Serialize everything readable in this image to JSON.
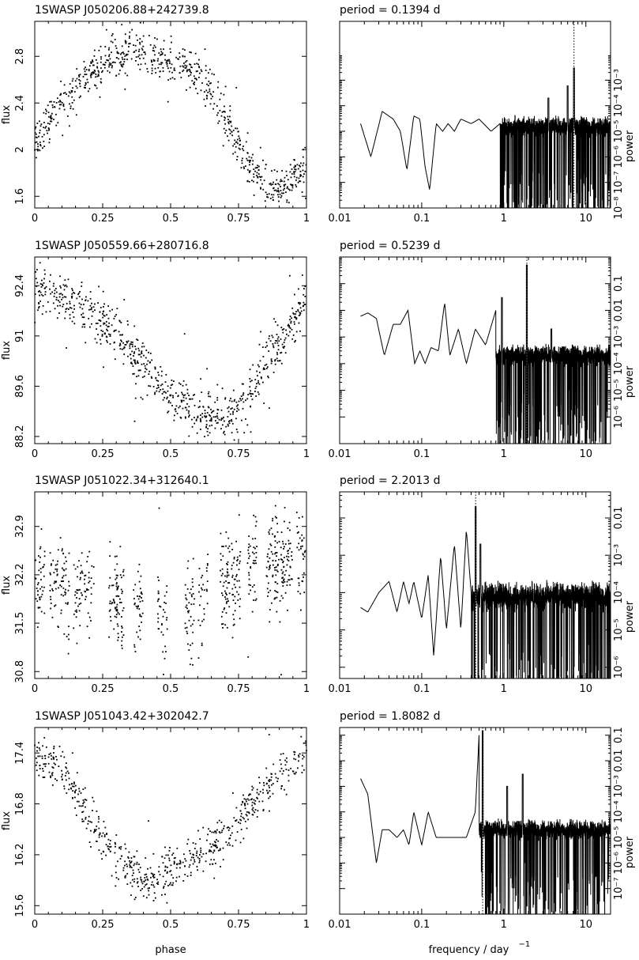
{
  "figure": {
    "xlabel_left": "phase",
    "xlabel_right_base": "frequency / day",
    "xlabel_right_exp": "−1",
    "ylabel_left": "flux",
    "ylabel_right": "power",
    "period_label": "period =",
    "period_unit": "d"
  },
  "panels": [
    {
      "star": "1SWASP J050206.88+242739.8",
      "period": "0.1394"
    },
    {
      "star": "1SWASP J050559.66+280716.8",
      "period": "0.5239"
    },
    {
      "star": "1SWASP J051022.34+312640.1",
      "period": "2.2013"
    },
    {
      "star": "1SWASP J051043.42+302042.7",
      "period": "1.8082"
    }
  ],
  "chart_data": [
    {
      "type": "scatter",
      "title": "1SWASP J050206.88+242739.8",
      "xlabel": "phase",
      "ylabel": "flux",
      "xlim": [
        0,
        1
      ],
      "ylim": [
        1.5,
        3.1
      ],
      "xticks": [
        "0",
        "0.25",
        "0.5",
        "0.75",
        "1"
      ],
      "yticks": [
        1.6,
        2,
        2.4,
        2.8
      ],
      "shape": "hump",
      "n_points": 750,
      "scatter": 0.14,
      "profile_x": [
        0,
        0.1,
        0.2,
        0.3,
        0.4,
        0.5,
        0.6,
        0.65,
        0.7,
        0.75,
        0.8,
        0.9,
        1.0
      ],
      "profile_y": [
        2.05,
        2.4,
        2.65,
        2.8,
        2.85,
        2.75,
        2.65,
        2.5,
        2.3,
        2.05,
        1.8,
        1.65,
        1.85
      ]
    },
    {
      "type": "line",
      "title": "period = 0.1394 d",
      "xlabel": "frequency / day−1",
      "ylabel": "power",
      "xscale": "log",
      "yscale": "log",
      "xlim": [
        0.01,
        20
      ],
      "ylim": [
        1e-08,
        0.2
      ],
      "xticks": [
        "0.01",
        "0.1",
        "1",
        "10"
      ],
      "yticks": [
        1e-08,
        1e-07,
        1e-06,
        1e-05,
        0.0001,
        0.001
      ],
      "period_line_freq": 7.174,
      "low_freq_curve": {
        "f": [
          0.018,
          0.024,
          0.033,
          0.045,
          0.055,
          0.066,
          0.08,
          0.095,
          0.11,
          0.125,
          0.15,
          0.18,
          0.21,
          0.25,
          0.3,
          0.4,
          0.5,
          0.7,
          0.9
        ],
        "p": [
          2e-05,
          1e-06,
          6e-05,
          3e-05,
          1e-05,
          3e-07,
          4e-05,
          3e-05,
          4e-07,
          5e-08,
          2e-05,
          1e-05,
          2e-05,
          1e-05,
          3e-05,
          2e-05,
          3e-05,
          1e-05,
          2e-05
        ]
      },
      "noise_level": 1.5e-05,
      "peaks": [
        {
          "f": 7.174,
          "p": 0.003
        },
        {
          "f": 6.0,
          "p": 0.0006
        },
        {
          "f": 3.5,
          "p": 0.0002
        }
      ]
    },
    {
      "type": "scatter",
      "title": "1SWASP J050559.66+280716.8",
      "xlabel": "phase",
      "ylabel": "flux",
      "xlim": [
        0,
        1
      ],
      "ylim": [
        88,
        93.2
      ],
      "xticks": [
        "0",
        "0.25",
        "0.5",
        "0.75",
        "1"
      ],
      "yticks": [
        88.2,
        89.6,
        91,
        92.4
      ],
      "shape": "dip",
      "n_points": 750,
      "scatter": 0.6,
      "profile_x": [
        0,
        0.1,
        0.2,
        0.3,
        0.4,
        0.5,
        0.6,
        0.7,
        0.75,
        0.8,
        0.9,
        1.0
      ],
      "profile_y": [
        92.3,
        92.1,
        91.7,
        91.0,
        90.2,
        89.3,
        88.8,
        88.7,
        88.9,
        89.6,
        90.8,
        92.0
      ]
    },
    {
      "type": "line",
      "title": "period = 0.5239 d",
      "xlabel": "frequency / day−1",
      "ylabel": "power",
      "xscale": "log",
      "yscale": "log",
      "xlim": [
        0.01,
        20
      ],
      "ylim": [
        1e-07,
        1
      ],
      "xticks": [
        "0.01",
        "0.1",
        "1",
        "10"
      ],
      "yticks": [
        1e-06,
        1e-05,
        0.0001,
        0.001,
        0.01,
        0.1
      ],
      "period_line_freq": 1.909,
      "low_freq_curve": {
        "f": [
          0.018,
          0.022,
          0.028,
          0.035,
          0.045,
          0.055,
          0.068,
          0.082,
          0.095,
          0.11,
          0.13,
          0.16,
          0.19,
          0.22,
          0.28,
          0.35,
          0.45,
          0.6,
          0.8
        ],
        "p": [
          0.006,
          0.008,
          0.005,
          0.0002,
          0.003,
          0.003,
          0.01,
          0.0001,
          0.0003,
          0.0001,
          0.0004,
          0.0003,
          0.02,
          0.0002,
          0.002,
          0.0001,
          0.002,
          0.0005,
          0.01
        ]
      },
      "noise_level": 0.0002,
      "peaks": [
        {
          "f": 1.909,
          "p": 0.5
        },
        {
          "f": 0.95,
          "p": 0.03
        },
        {
          "f": 3.8,
          "p": 0.002
        }
      ]
    },
    {
      "type": "scatter",
      "title": "1SWASP J051022.34+312640.1",
      "xlabel": "phase",
      "ylabel": "flux",
      "xlim": [
        0,
        1
      ],
      "ylim": [
        30.7,
        33.4
      ],
      "xticks": [
        "0",
        "0.25",
        "0.5",
        "0.75",
        "1"
      ],
      "yticks": [
        30.8,
        31.5,
        32.2,
        32.9
      ],
      "shape": "columns",
      "n_points": 750,
      "scatter": 0.6,
      "profile_x": [
        0,
        0.25,
        0.5,
        0.75,
        1.0
      ],
      "profile_y": [
        32.2,
        31.9,
        31.6,
        32.2,
        32.5
      ]
    },
    {
      "type": "line",
      "title": "period = 2.2013 d",
      "xlabel": "frequency / day−1",
      "ylabel": "power",
      "xscale": "log",
      "yscale": "log",
      "xlim": [
        0.01,
        20
      ],
      "ylim": [
        5e-07,
        0.05
      ],
      "xticks": [
        "0.01",
        "0.1",
        "1",
        "10"
      ],
      "yticks": [
        1e-06,
        1e-05,
        0.0001,
        0.001,
        0.01
      ],
      "period_line_freq": 0.4543,
      "low_freq_curve": {
        "f": [
          0.018,
          0.022,
          0.03,
          0.04,
          0.05,
          0.06,
          0.07,
          0.08,
          0.1,
          0.12,
          0.14,
          0.17,
          0.2,
          0.25,
          0.3,
          0.35,
          0.4
        ],
        "p": [
          4e-05,
          3e-05,
          0.0001,
          0.0002,
          3e-05,
          0.0002,
          5e-05,
          0.0002,
          2e-05,
          0.0003,
          2e-06,
          0.001,
          1e-05,
          0.002,
          1e-05,
          0.005,
          0.0001
        ]
      },
      "noise_level": 8e-05,
      "peaks": [
        {
          "f": 0.4543,
          "p": 0.02
        },
        {
          "f": 0.52,
          "p": 0.002
        }
      ]
    },
    {
      "type": "scatter",
      "title": "1SWASP J051043.42+302042.7",
      "xlabel": "phase",
      "ylabel": "flux",
      "xlim": [
        0,
        1
      ],
      "ylim": [
        15.5,
        17.7
      ],
      "xticks": [
        "0",
        "0.25",
        "0.5",
        "0.75",
        "1"
      ],
      "yticks": [
        15.6,
        16.2,
        16.8,
        17.4
      ],
      "shape": "dip",
      "n_points": 650,
      "scatter": 0.22,
      "profile_x": [
        0,
        0.1,
        0.2,
        0.3,
        0.4,
        0.5,
        0.6,
        0.7,
        0.8,
        0.9,
        1.0
      ],
      "profile_y": [
        17.4,
        17.2,
        16.7,
        16.1,
        15.9,
        16.0,
        16.2,
        16.4,
        16.8,
        17.1,
        17.5
      ]
    },
    {
      "type": "line",
      "title": "period = 1.8082 d",
      "xlabel": "frequency / day−1",
      "ylabel": "power",
      "xscale": "log",
      "yscale": "log",
      "xlim": [
        0.01,
        20
      ],
      "ylim": [
        1e-08,
        0.2
      ],
      "xticks": [
        "0.01",
        "0.1",
        "1",
        "10"
      ],
      "yticks": [
        1e-07,
        1e-06,
        1e-05,
        0.0001,
        0.001,
        0.01,
        0.1
      ],
      "period_line_freq": 0.553,
      "low_freq_curve": {
        "f": [
          0.018,
          0.022,
          0.028,
          0.033,
          0.04,
          0.05,
          0.06,
          0.07,
          0.08,
          0.1,
          0.12,
          0.15,
          0.18,
          0.22,
          0.28,
          0.35,
          0.45,
          0.5
        ],
        "p": [
          0.002,
          0.0005,
          1e-06,
          2e-05,
          2e-05,
          1e-05,
          2e-05,
          5e-06,
          0.0001,
          5e-06,
          0.0001,
          1e-05,
          1e-05,
          1e-05,
          1e-05,
          1e-05,
          0.0001,
          0.1
        ]
      },
      "noise_level": 2e-05,
      "peaks": [
        {
          "f": 0.553,
          "p": 0.15
        },
        {
          "f": 1.1,
          "p": 0.001
        },
        {
          "f": 1.7,
          "p": 0.003
        }
      ]
    }
  ]
}
